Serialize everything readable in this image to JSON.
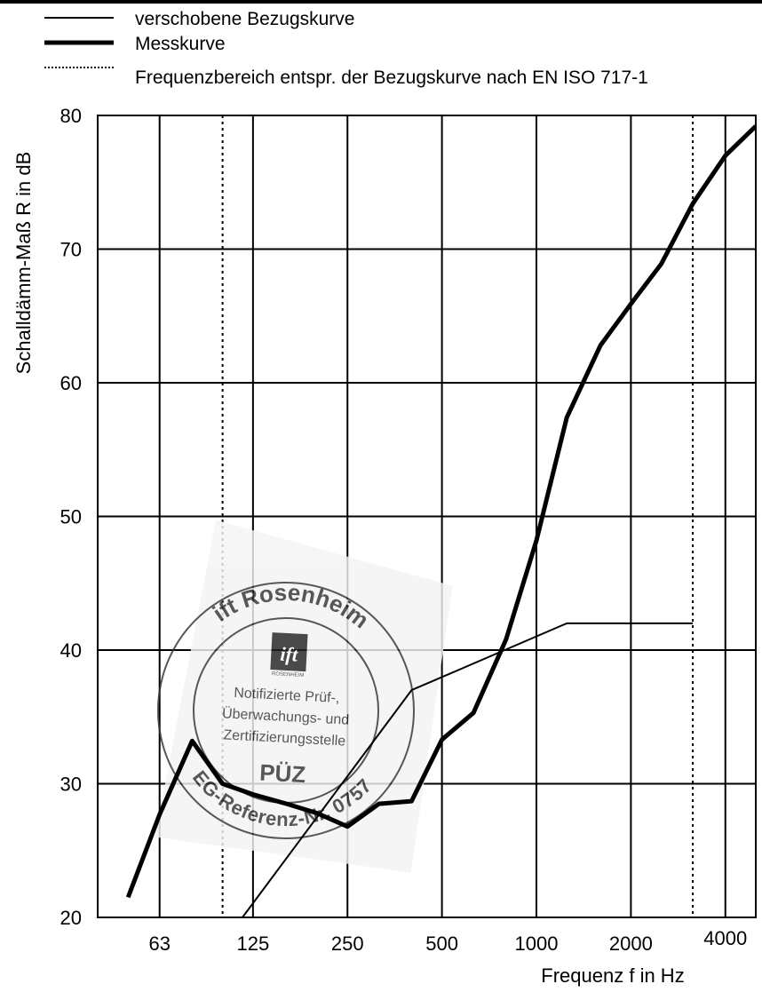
{
  "chart_data": {
    "type": "line",
    "xscale": "log",
    "xlabel": "Frequenz f in Hz",
    "ylabel": "Schalldämm-Maß R in dB",
    "ylim": [
      20,
      80
    ],
    "xlim": [
      40,
      5000
    ],
    "grid": true,
    "legend_placement": "top-left",
    "y_ticks": [
      20,
      30,
      40,
      50,
      60,
      70,
      80
    ],
    "x_ticks": [
      {
        "value": 63,
        "label": "63"
      },
      {
        "value": 125,
        "label": "125"
      },
      {
        "value": 250,
        "label": "250"
      },
      {
        "value": 500,
        "label": "500"
      },
      {
        "value": 1000,
        "label": "1000"
      },
      {
        "value": 2000,
        "label": "2000"
      },
      {
        "value": 4000,
        "label": "4000"
      }
    ],
    "legend": [
      {
        "label": "verschobene Bezugskurve",
        "style": "thin"
      },
      {
        "label": "Messkurve",
        "style": "thick"
      },
      {
        "label": "Frequenzbereich entspr. der Bezugskurve nach EN ISO 717-1",
        "style": "dotted"
      }
    ],
    "series": [
      {
        "name": "verschobene Bezugskurve",
        "style": "thin",
        "x": [
          100,
          400,
          1250,
          3150
        ],
        "y": [
          18,
          37,
          42,
          42
        ]
      },
      {
        "name": "Messkurve",
        "style": "thick",
        "x": [
          50,
          63,
          80,
          100,
          125,
          160,
          200,
          250,
          315,
          400,
          500,
          630,
          800,
          1000,
          1250,
          1600,
          2000,
          2500,
          3150,
          4000,
          5000
        ],
        "y": [
          21.5,
          27.7,
          33.2,
          30.0,
          29.2,
          28.5,
          27.8,
          26.8,
          28.5,
          28.7,
          33.3,
          35.3,
          40.8,
          48.2,
          57.4,
          62.8,
          65.9,
          68.9,
          73.4,
          77.0,
          79.2
        ]
      }
    ],
    "vertical_markers": [
      100,
      3150
    ],
    "stamp": {
      "top_text": "ift Rosenheim",
      "logo_text": "ift",
      "logo_subtext": "ROSENHEIM",
      "center_lines": [
        "Notifizierte Prüf-,",
        "Überwachungs- und",
        "Zertifizierungsstelle"
      ],
      "badge": "PÜZ",
      "bottom_text": "EG-Referenz-Nr. 0757"
    }
  }
}
